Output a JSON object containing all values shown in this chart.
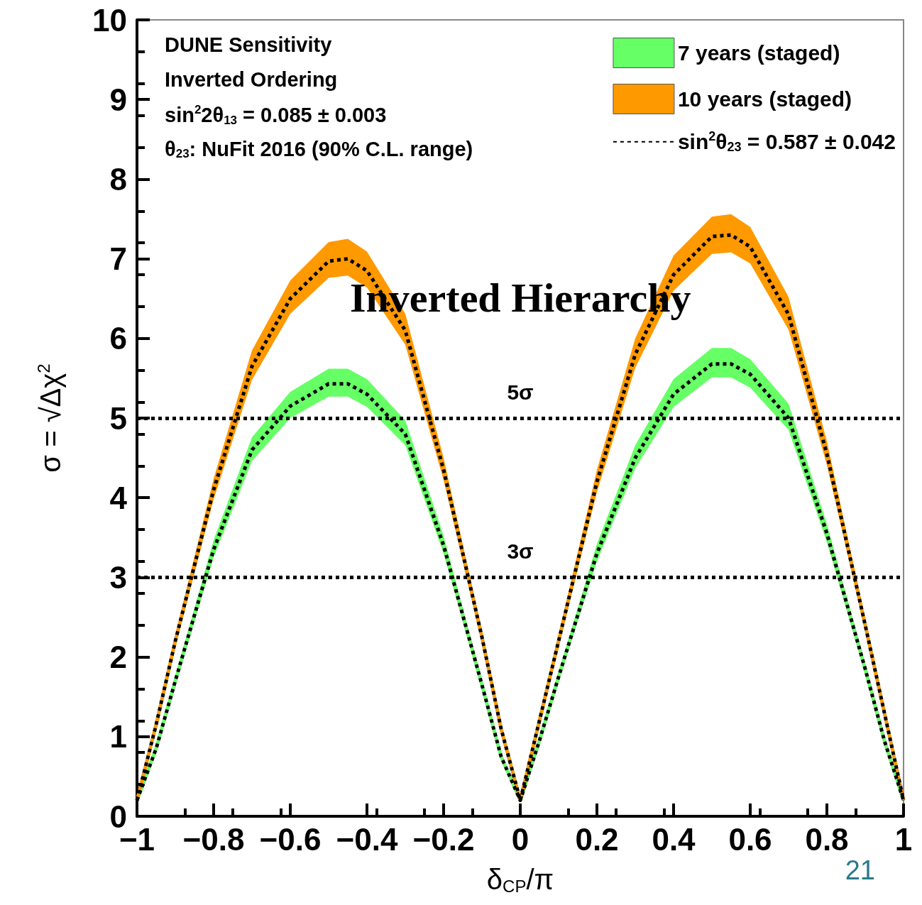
{
  "chart_data": {
    "type": "line",
    "title": "Inverted Hierarchy",
    "xlabel": "δ$_{CP}$/π",
    "ylabel": "σ = √Δχ$^{2}$",
    "x": [
      -1,
      -0.95,
      -0.9,
      -0.8,
      -0.7,
      -0.6,
      -0.5,
      -0.45,
      -0.4,
      -0.3,
      -0.2,
      -0.1,
      -0.05,
      0,
      0.05,
      0.1,
      0.2,
      0.3,
      0.4,
      0.5,
      0.55,
      0.6,
      0.7,
      0.8,
      0.9,
      0.95,
      1
    ],
    "series": [
      {
        "name": "7 years (staged)",
        "color": "#66ff66",
        "values": [
          0.2,
          0.85,
          1.7,
          3.35,
          4.6,
          5.15,
          5.43,
          5.43,
          5.3,
          4.8,
          3.4,
          1.65,
          0.75,
          0.2,
          0.95,
          1.75,
          3.3,
          4.5,
          5.3,
          5.68,
          5.68,
          5.55,
          5.0,
          3.55,
          1.85,
          0.95,
          0.2
        ],
        "lower": [
          0.19,
          0.82,
          1.65,
          3.25,
          4.46,
          5.0,
          5.27,
          5.27,
          5.14,
          4.66,
          3.3,
          1.6,
          0.73,
          0.19,
          0.92,
          1.7,
          3.2,
          4.37,
          5.14,
          5.51,
          5.51,
          5.38,
          4.85,
          3.44,
          1.79,
          0.92,
          0.19
        ],
        "upper": [
          0.21,
          0.88,
          1.76,
          3.47,
          4.76,
          5.33,
          5.62,
          5.62,
          5.49,
          4.97,
          3.52,
          1.71,
          0.78,
          0.21,
          0.98,
          1.81,
          3.42,
          4.66,
          5.49,
          5.88,
          5.88,
          5.74,
          5.18,
          3.67,
          1.91,
          0.98,
          0.21
        ]
      },
      {
        "name": "10 years (staged)",
        "color": "#ff9900",
        "values": [
          0.2,
          1.15,
          2.2,
          4.1,
          5.65,
          6.5,
          6.97,
          7.0,
          6.85,
          6.1,
          4.35,
          2.25,
          1.1,
          0.2,
          1.2,
          2.2,
          4.2,
          5.8,
          6.8,
          7.28,
          7.3,
          7.15,
          6.3,
          4.55,
          2.4,
          1.3,
          0.2
        ],
        "lower": [
          0.19,
          1.12,
          2.13,
          3.98,
          5.48,
          6.31,
          6.76,
          6.79,
          6.64,
          5.92,
          4.22,
          2.18,
          1.07,
          0.19,
          1.16,
          2.13,
          4.07,
          5.63,
          6.6,
          7.06,
          7.08,
          6.94,
          6.11,
          4.41,
          2.33,
          1.26,
          0.19
        ],
        "upper": [
          0.21,
          1.19,
          2.28,
          4.24,
          5.85,
          6.73,
          7.21,
          7.25,
          7.09,
          6.31,
          4.5,
          2.33,
          1.14,
          0.21,
          1.24,
          2.28,
          4.35,
          6.0,
          7.04,
          7.53,
          7.56,
          7.4,
          6.52,
          4.71,
          2.48,
          1.35,
          0.21
        ]
      },
      {
        "type": "line",
        "name": "sin$^{2}$θ$_{23}$ = 0.587 ± 0.042",
        "color": "#000000",
        "values": [
          0.2,
          0.85,
          1.7,
          3.35,
          4.6,
          5.15,
          5.43,
          5.43,
          5.3,
          4.8,
          3.4,
          1.65,
          0.75,
          0.2,
          0.95,
          1.75,
          3.3,
          4.5,
          5.3,
          5.68,
          5.68,
          5.55,
          5.0,
          3.55,
          1.85,
          0.95,
          0.2
        ]
      },
      {
        "type": "line",
        "color": "#000000",
        "values": [
          0.2,
          1.15,
          2.2,
          4.1,
          5.65,
          6.5,
          6.97,
          7.0,
          6.85,
          6.1,
          4.35,
          2.25,
          1.1,
          0.2,
          1.2,
          2.2,
          4.2,
          5.8,
          6.8,
          7.28,
          7.3,
          7.15,
          6.3,
          4.55,
          2.4,
          1.3,
          0.2
        ]
      }
    ],
    "xlim": [
      -1,
      1
    ],
    "xticks": [
      -1,
      -0.8,
      -0.6,
      -0.4,
      -0.2,
      0,
      0.2,
      0.4,
      0.6,
      0.8,
      1
    ],
    "ylim": [
      0,
      10
    ],
    "yticks": [
      0,
      1,
      2,
      3,
      4,
      5,
      6,
      7,
      8,
      9,
      10
    ],
    "ref_lines": [
      {
        "axis": "y",
        "value": 5,
        "label": "5σ",
        "color": "#000000",
        "line_style": "dotted"
      },
      {
        "axis": "y",
        "value": 3,
        "label": "3σ",
        "color": "#000000",
        "line_style": "dotted"
      }
    ],
    "annotations": [
      "DUNE Sensitivity",
      "Inverted Ordering",
      "sin$^{2}$2θ$_{13}$ = 0.085 ± 0.003",
      "θ$_{23}$: NuFit 2016 (90% C.L. range)",
      "21"
    ],
    "grid": false,
    "legend": "top right",
    "marker": "none",
    "line_style": "dotted"
  }
}
